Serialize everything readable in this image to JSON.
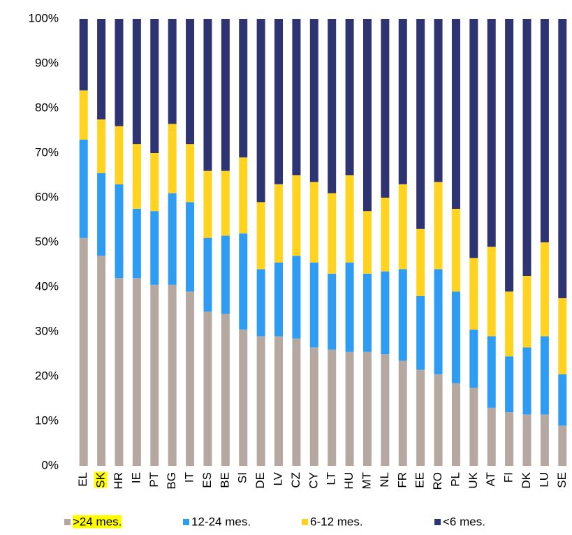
{
  "chart_data": {
    "type": "stacked_bar",
    "categories": [
      "EL",
      "SK",
      "HR",
      "IE",
      "PT",
      "BG",
      "IT",
      "ES",
      "BE",
      "SI",
      "DE",
      "LV",
      "CZ",
      "CY",
      "LT",
      "HU",
      "MT",
      "NL",
      "FR",
      "EE",
      "RO",
      "PL",
      "UK",
      "AT",
      "FI",
      "DK",
      "LU",
      "SE"
    ],
    "series": [
      {
        "name": ">24 mes.",
        "color": "#b5a8a1",
        "values": [
          51,
          47,
          42,
          42,
          40.5,
          40.5,
          39,
          34.5,
          34,
          30.5,
          29,
          29,
          28.5,
          26.5,
          26,
          25.5,
          25.5,
          25,
          23.5,
          21.5,
          20.5,
          18.5,
          17.5,
          13,
          12,
          11.5,
          11.5,
          9
        ]
      },
      {
        "name": "12-24 mes.",
        "color": "#2e9cf2",
        "values": [
          22,
          18.5,
          21,
          15.5,
          16.5,
          20.5,
          20,
          16.5,
          17.5,
          21.5,
          15,
          16.5,
          18.5,
          19,
          17,
          20,
          17.5,
          18.5,
          20.5,
          16.5,
          23.5,
          20.5,
          13,
          16,
          12.5,
          15,
          17.5,
          11.5
        ]
      },
      {
        "name": "6-12 mes.",
        "color": "#ffd320",
        "values": [
          11,
          12,
          13,
          14.5,
          13,
          15.5,
          13,
          15,
          14.5,
          17,
          15,
          17.5,
          18,
          18,
          18,
          19.5,
          14,
          16.5,
          19,
          15,
          19.5,
          18.5,
          16,
          20,
          14.5,
          16,
          21,
          17
        ]
      },
      {
        "name": "<6 mes.",
        "color": "#2e3372",
        "values": [
          16,
          22.5,
          24,
          28,
          30,
          23.5,
          28,
          34,
          34,
          31,
          41,
          37,
          35,
          36.5,
          39,
          35,
          43,
          40,
          37,
          47,
          36.5,
          42.5,
          53.5,
          51,
          61,
          57.5,
          50,
          62.5
        ]
      }
    ],
    "ylim": [
      0,
      100
    ],
    "yticks": [
      {
        "value": 0,
        "label": "0%"
      },
      {
        "value": 10,
        "label": "10%"
      },
      {
        "value": 20,
        "label": "20%"
      },
      {
        "value": 30,
        "label": "30%"
      },
      {
        "value": 40,
        "label": "40%"
      },
      {
        "value": 50,
        "label": "50%"
      },
      {
        "value": 60,
        "label": "60%"
      },
      {
        "value": 70,
        "label": "70%"
      },
      {
        "value": 80,
        "label": "80%"
      },
      {
        "value": 90,
        "label": "90%"
      },
      {
        "value": 100,
        "label": "100%"
      }
    ],
    "grid": false,
    "legend": "bottom",
    "highlighted": [
      "SK",
      ">24 mes."
    ],
    "highlight_color": "#ffff00"
  }
}
